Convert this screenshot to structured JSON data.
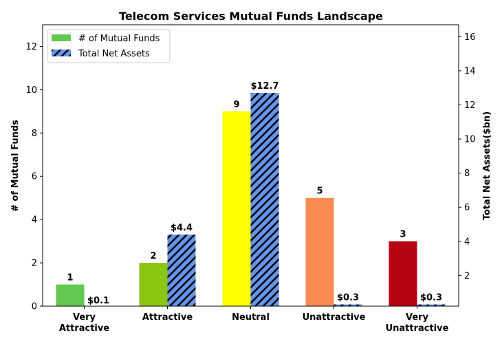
{
  "chart_data": {
    "type": "bar",
    "title": "Telecom Services Mutual Funds Landscape",
    "categories": [
      [
        "Very",
        "Attractive"
      ],
      [
        "Attractive"
      ],
      [
        "Neutral"
      ],
      [
        "Unattractive"
      ],
      [
        "Very",
        "Unattractive"
      ]
    ],
    "ylabel_left": "# of Mutual Funds",
    "ylabel_right": "Total Net Assets($bn)",
    "ylim_left": [
      0,
      13
    ],
    "ylim_right": [
      0.2,
      16.7
    ],
    "yticks_left": [
      0,
      2,
      4,
      6,
      8,
      10,
      12
    ],
    "yticks_right": [
      2,
      4,
      6,
      8,
      10,
      12,
      14,
      16
    ],
    "series": [
      {
        "name": "# of Mutual Funds",
        "axis": "left",
        "values": [
          1,
          2,
          9,
          5,
          3
        ],
        "labels": [
          "1",
          "2",
          "9",
          "5",
          "3"
        ],
        "colors": [
          "#63c84f",
          "#8cc612",
          "#ffff00",
          "#f98a52",
          "#b70412"
        ],
        "legend_color": "#63c84f"
      },
      {
        "name": "Total Net Assets",
        "axis": "right",
        "values": [
          0.1,
          4.4,
          12.7,
          0.3,
          0.3
        ],
        "labels": [
          "$0.1",
          "$4.4",
          "$12.7",
          "$0.3",
          "$0.3"
        ],
        "color": "#6495ed",
        "hatch": "black diagonal"
      }
    ],
    "legend_position": "top-left",
    "grid": false
  }
}
